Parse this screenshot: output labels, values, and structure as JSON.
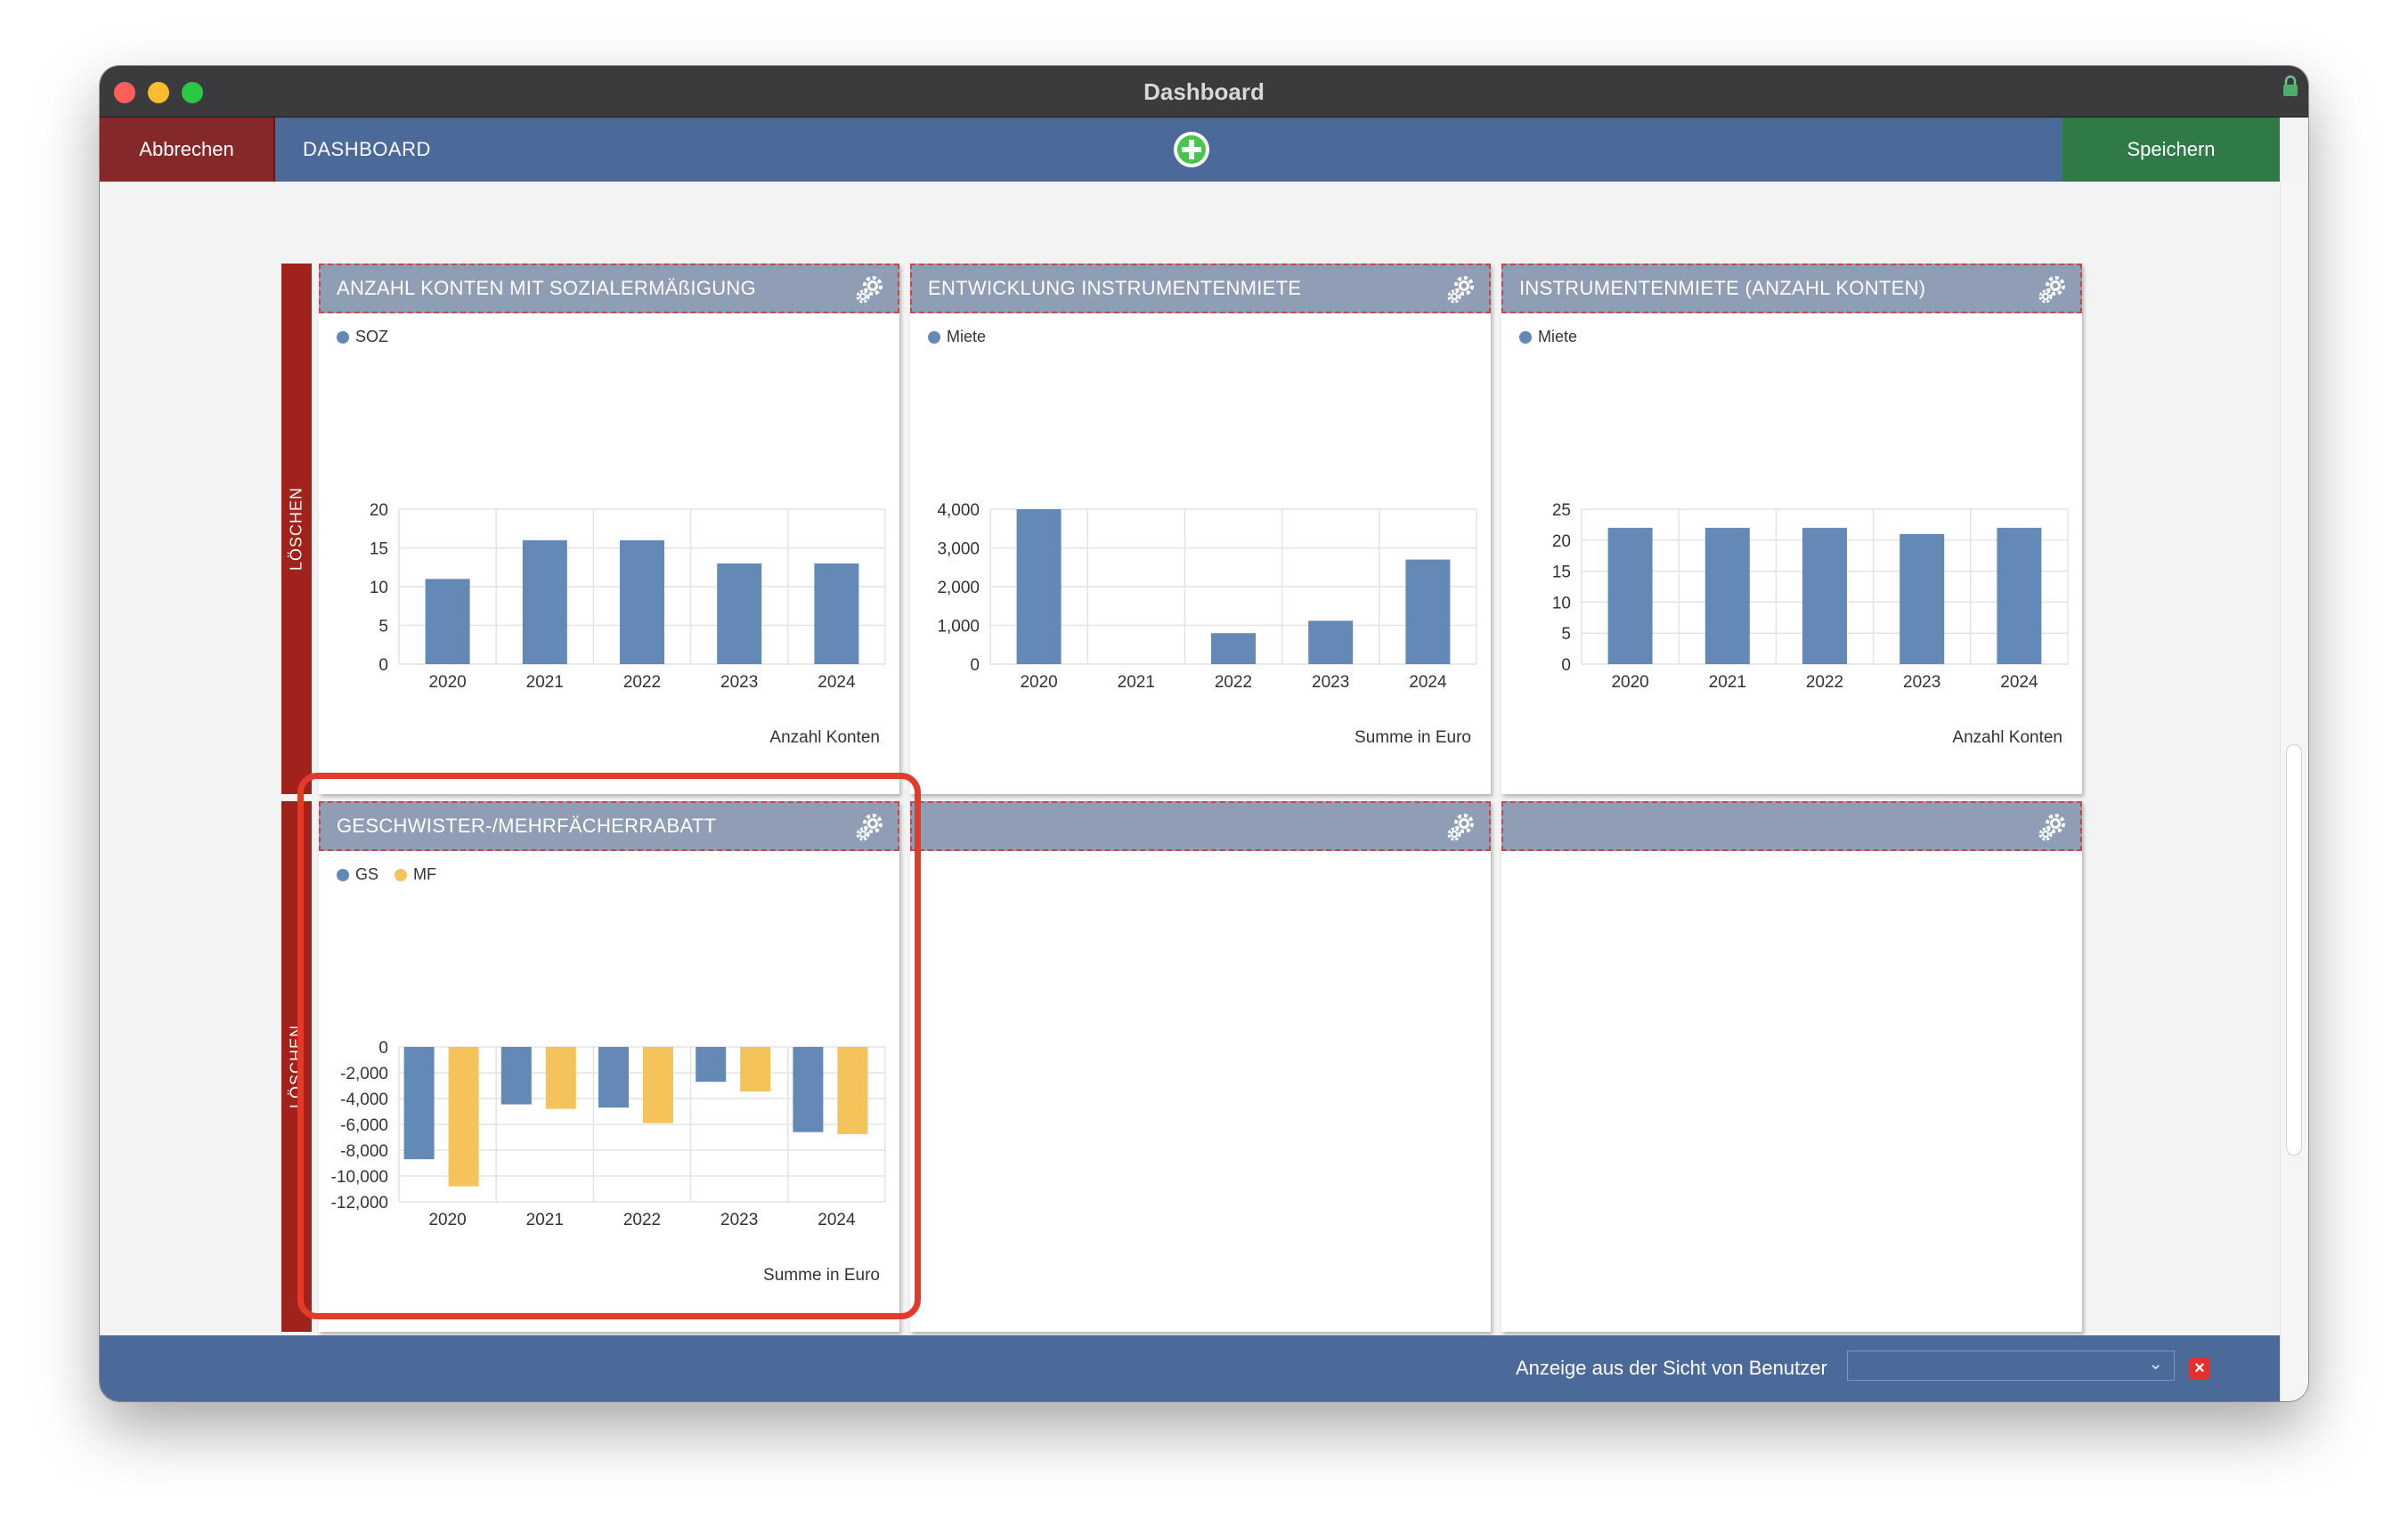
{
  "window": {
    "title": "Dashboard"
  },
  "toolbar": {
    "cancel_label": "Abbrechen",
    "breadcrumb": "DASHBOARD",
    "save_label": "Speichern",
    "add_icon": "plus-circle-icon"
  },
  "rows": [
    {
      "delete_label": "LÖSCHEN"
    },
    {
      "delete_label": "LÖSCHEN"
    }
  ],
  "panels": [
    {
      "title": "ANZAHL KONTEN MIT SOZIALERMÄßIGUNG"
    },
    {
      "title": "ENTWICKLUNG INSTRUMENTENMIETE"
    },
    {
      "title": "INSTRUMENTENMIETE (ANZAHL KONTEN)"
    },
    {
      "title": "GESCHWISTER-/MEHRFÄCHERRABATT"
    },
    {
      "title": ""
    },
    {
      "title": ""
    }
  ],
  "chart_data": [
    {
      "type": "bar",
      "categories": [
        "2020",
        "2021",
        "2022",
        "2023",
        "2024"
      ],
      "series": [
        {
          "name": "SOZ",
          "color": "#6389b6",
          "values": [
            11,
            16,
            16,
            13,
            13
          ]
        }
      ],
      "ylim": [
        0,
        20
      ],
      "yticks": [
        "0",
        "5",
        "10",
        "15",
        "20"
      ],
      "xlabel": "Anzahl Konten",
      "grid": true,
      "legend": "top-left"
    },
    {
      "type": "bar",
      "categories": [
        "2020",
        "2021",
        "2022",
        "2023",
        "2024"
      ],
      "series": [
        {
          "name": "Miete",
          "color": "#6389b6",
          "values": [
            4000,
            0,
            800,
            1120,
            2700
          ]
        }
      ],
      "ylim": [
        0,
        4000
      ],
      "yticks": [
        "0",
        "1,000",
        "2,000",
        "3,000",
        "4,000"
      ],
      "xlabel": "Summe in Euro",
      "grid": true,
      "legend": "top-left"
    },
    {
      "type": "bar",
      "categories": [
        "2020",
        "2021",
        "2022",
        "2023",
        "2024"
      ],
      "series": [
        {
          "name": "Miete",
          "color": "#6389b6",
          "values": [
            22,
            22,
            22,
            21,
            22
          ]
        }
      ],
      "ylim": [
        0,
        25
      ],
      "yticks": [
        "0",
        "5",
        "10",
        "15",
        "20",
        "25"
      ],
      "xlabel": "Anzahl Konten",
      "grid": true,
      "legend": "top-left"
    },
    {
      "type": "bar",
      "categories": [
        "2020",
        "2021",
        "2022",
        "2023",
        "2024"
      ],
      "series": [
        {
          "name": "GS",
          "color": "#6389b6",
          "values": [
            -8700,
            -4450,
            -4700,
            -2700,
            -6600
          ]
        },
        {
          "name": "MF",
          "color": "#f4c35a",
          "values": [
            -10800,
            -4800,
            -5900,
            -3450,
            -6750
          ]
        }
      ],
      "ylim": [
        -12000,
        0
      ],
      "yticks": [
        "-12,000",
        "-10,000",
        "-8,000",
        "-6,000",
        "-4,000",
        "-2,000",
        "0"
      ],
      "xlabel": "Summe in Euro",
      "grid": true,
      "legend": "top-left"
    }
  ],
  "bottombar": {
    "view_label": "Anzeige aus der Sicht von Benutzer",
    "select_value": "",
    "clear_icon": "close-icon"
  },
  "colors": {
    "toolbar": "#4b6a9a",
    "cancel": "#85282a",
    "save": "#2f7a45",
    "row_bar": "#a0221b",
    "highlight": "#e23b2a"
  }
}
